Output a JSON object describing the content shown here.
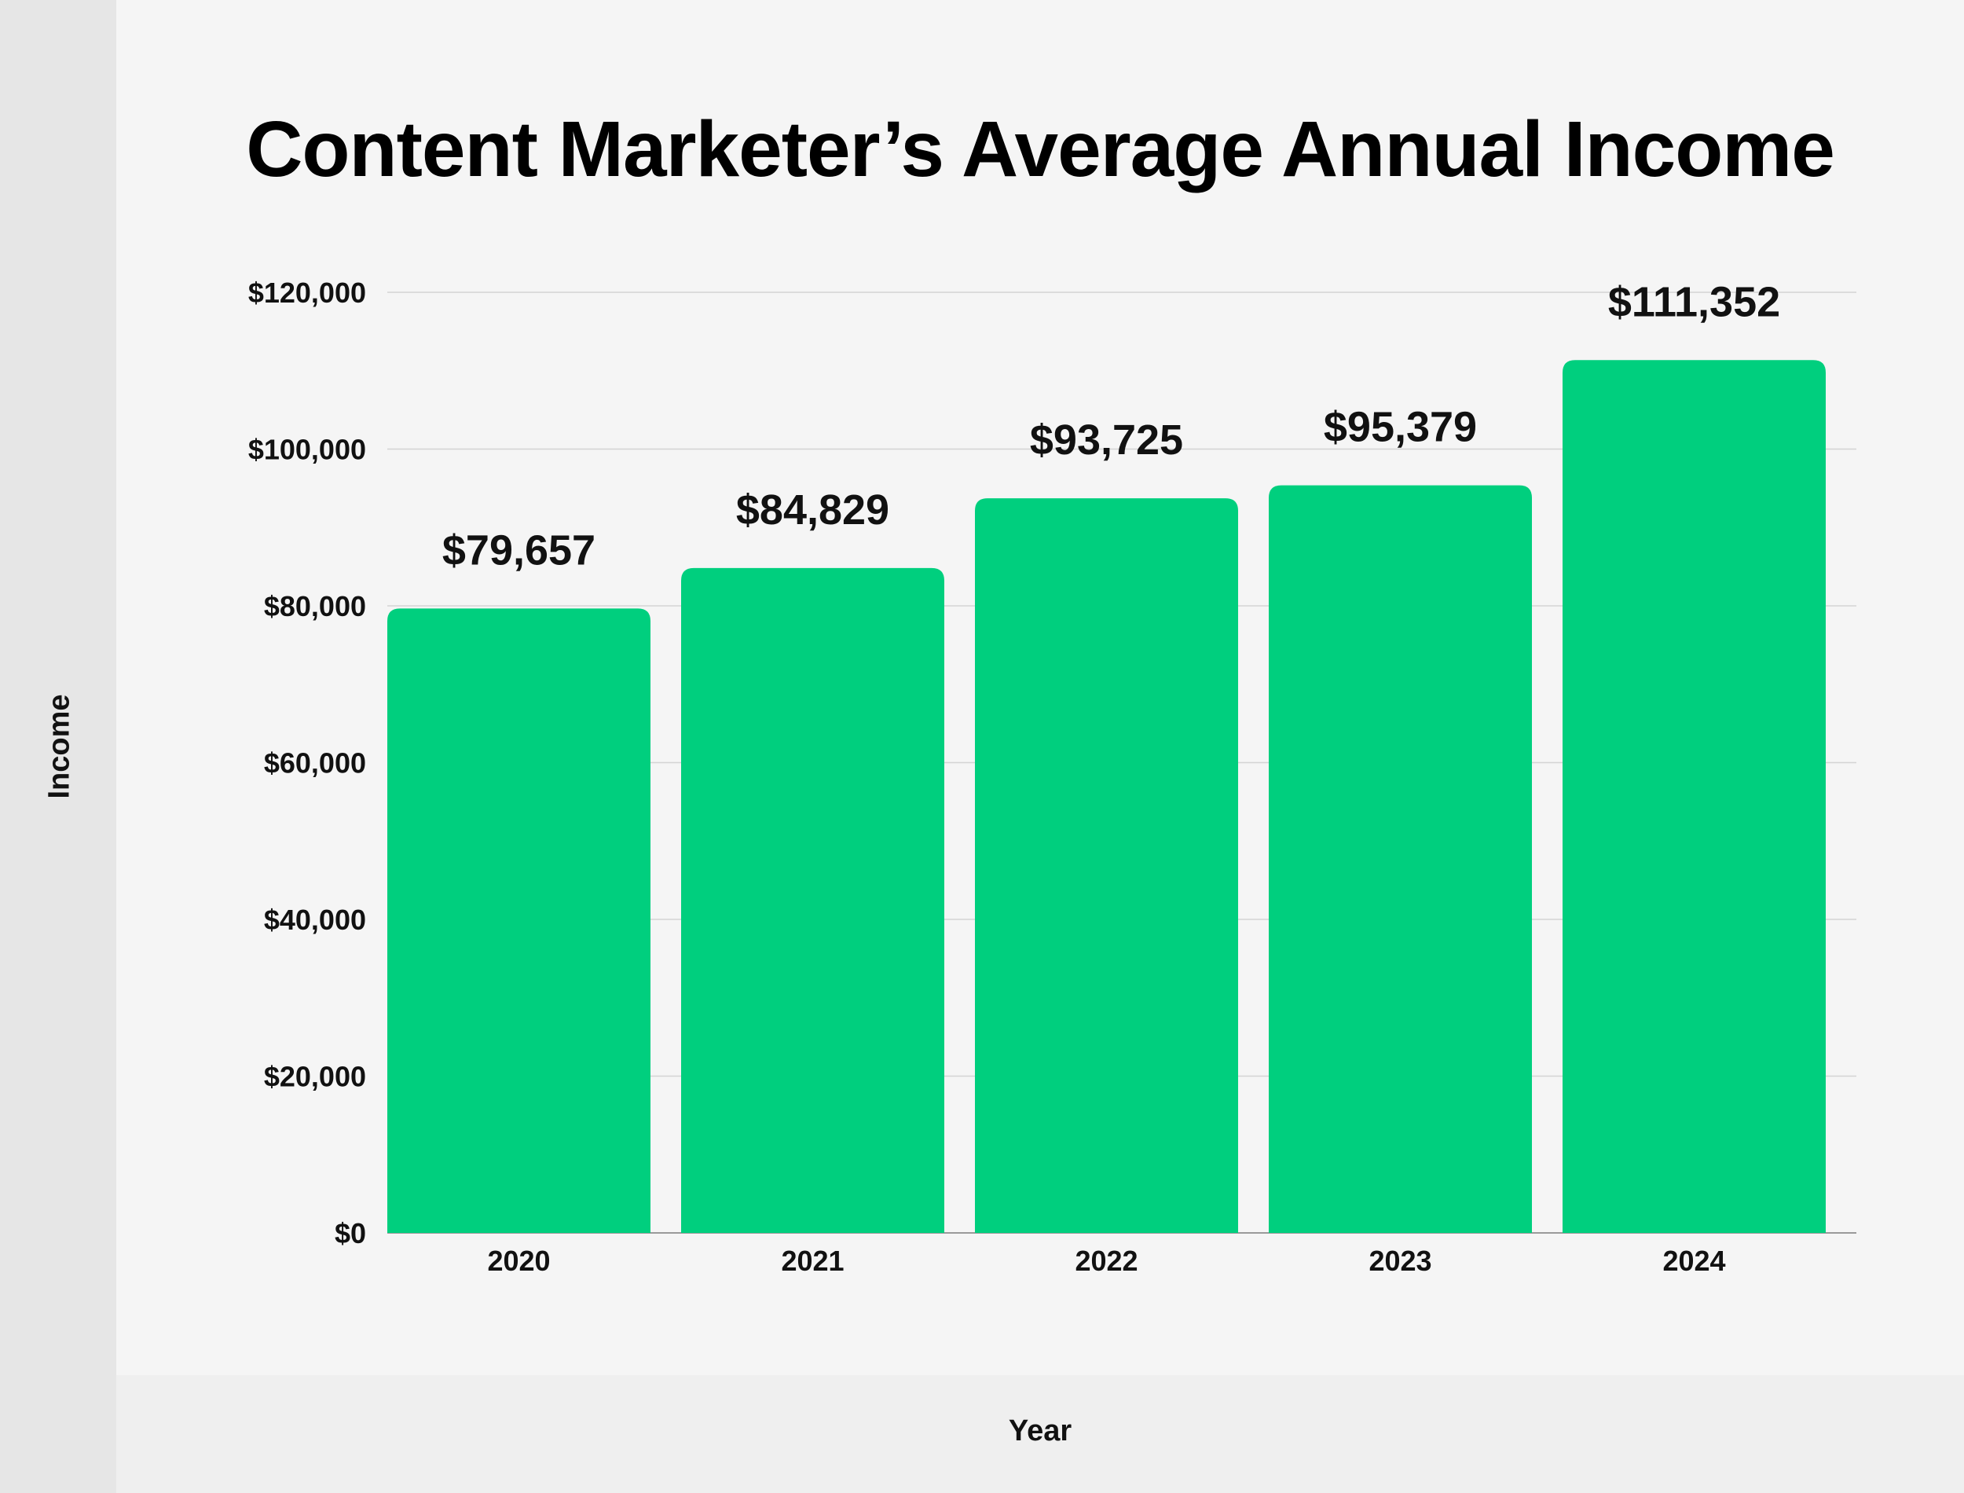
{
  "chart_data": {
    "type": "bar",
    "title": "Content Marketer’s Average Annual Income",
    "xlabel": "Year",
    "ylabel": "Income",
    "categories": [
      "2020",
      "2021",
      "2022",
      "2023",
      "2024"
    ],
    "values": [
      79657,
      84829,
      93725,
      95379,
      111352
    ],
    "value_labels": [
      "$79,657",
      "$84,829",
      "$93,725",
      "$95,379",
      "$111,352"
    ],
    "ylim": [
      0,
      120000
    ],
    "y_ticks": [
      0,
      20000,
      40000,
      60000,
      80000,
      100000,
      120000
    ],
    "y_tick_labels": [
      "$0",
      "$20,000",
      "$40,000",
      "$60,000",
      "$80,000",
      "$100,000",
      "$120,000"
    ],
    "grid": true,
    "bar_color": "#00cf7e",
    "grid_color": "#d4d4d4"
  }
}
